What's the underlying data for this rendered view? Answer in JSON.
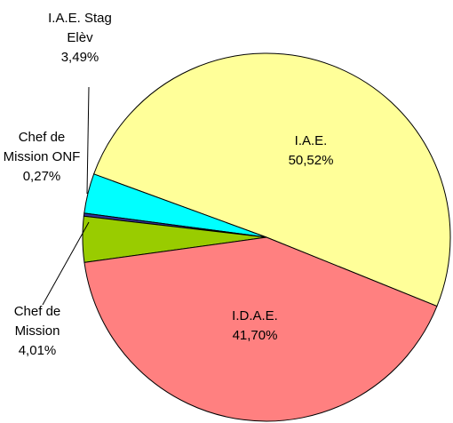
{
  "chart_data": {
    "type": "pie",
    "categories": [
      "I.A.E.",
      "I.A.E. Stag Elèv",
      "Chef de Mission ONF",
      "Chef de Mission",
      "I.D.A.E."
    ],
    "values": [
      50.52,
      3.49,
      0.27,
      4.01,
      41.7
    ],
    "value_labels": [
      "50,52%",
      "3,49%",
      "0,27%",
      "4,01%",
      "41,70%"
    ],
    "colors": [
      "#ffff99",
      "#00ffff",
      "#333399",
      "#99cc00",
      "#ff8080"
    ]
  }
}
